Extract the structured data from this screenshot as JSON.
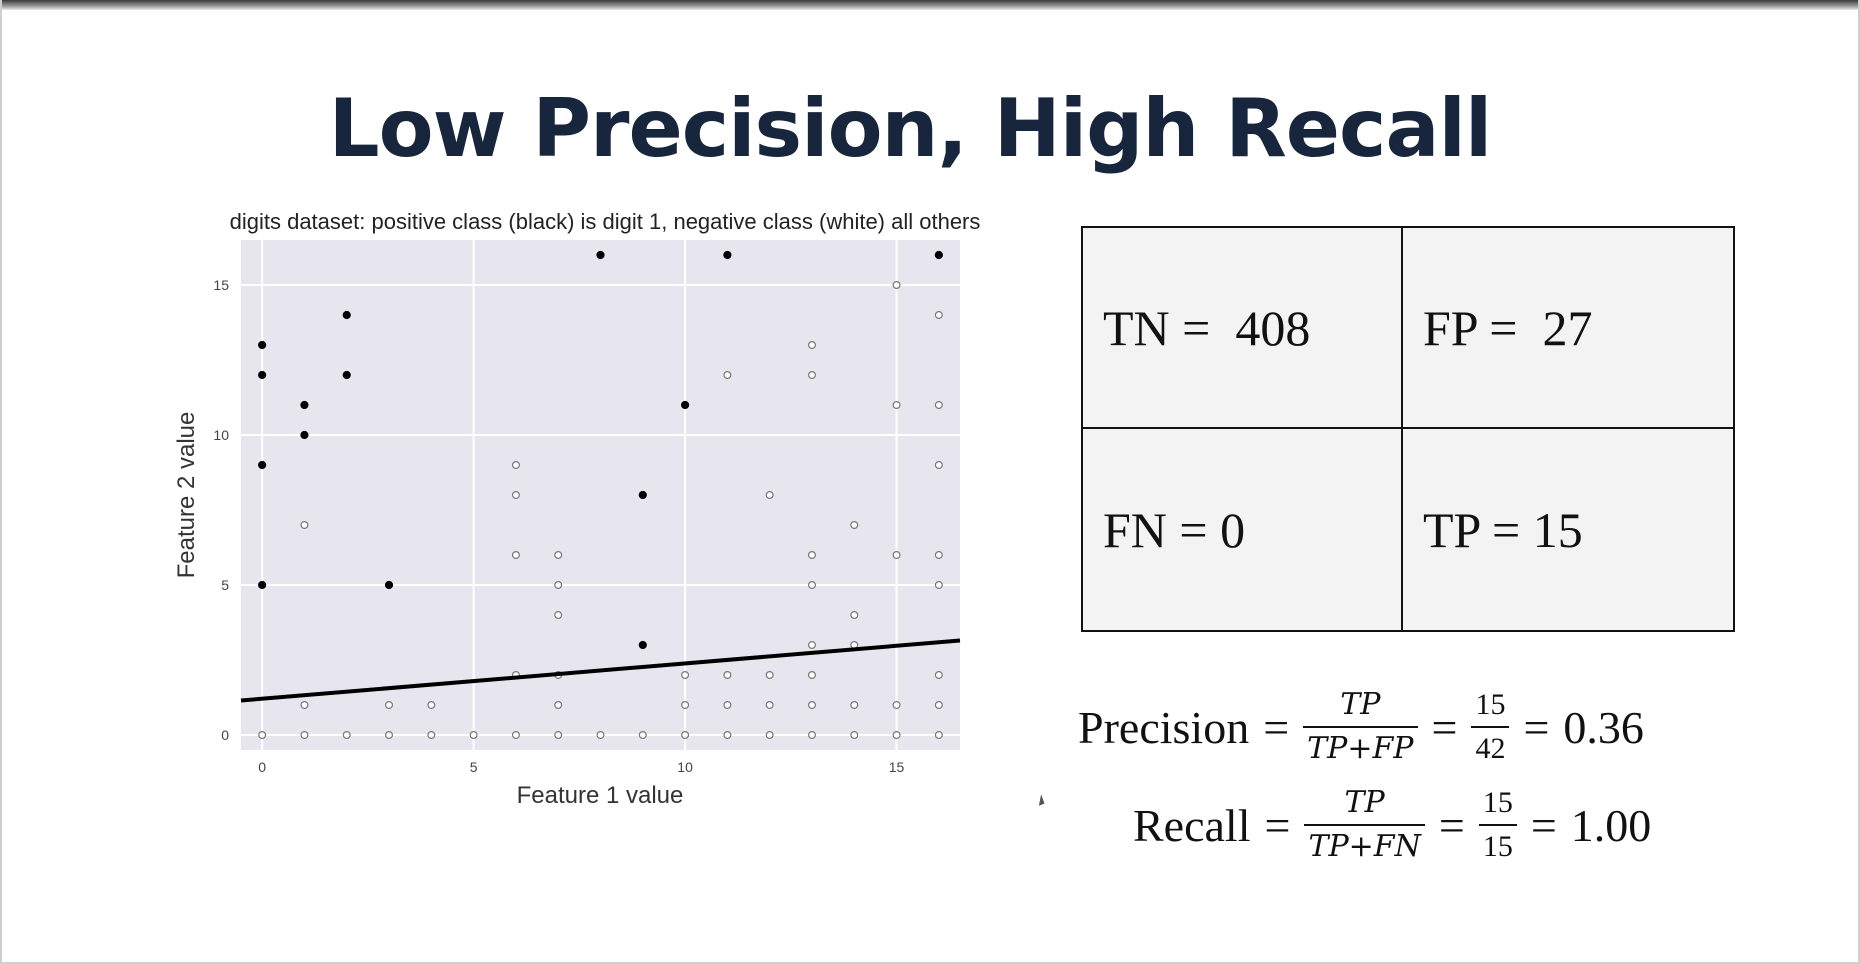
{
  "slide": {
    "title": "Low Precision, High Recall"
  },
  "chart_data": {
    "type": "scatter",
    "title": "digits dataset: positive class (black) is digit 1, negative class (white) all others",
    "xlabel": "Feature 1 value",
    "ylabel": "Feature 2 value",
    "xlim": [
      -0.5,
      16.5
    ],
    "ylim": [
      -0.5,
      16.5
    ],
    "xticks": [
      0,
      5,
      10,
      15
    ],
    "yticks": [
      0,
      5,
      10,
      15
    ],
    "grid": true,
    "series": [
      {
        "name": "positive (digit 1)",
        "color": "#000000",
        "points": [
          [
            0,
            13
          ],
          [
            0,
            12
          ],
          [
            0,
            9
          ],
          [
            0,
            5
          ],
          [
            1,
            11
          ],
          [
            1,
            10
          ],
          [
            2,
            14
          ],
          [
            2,
            12
          ],
          [
            3,
            5
          ],
          [
            8,
            16
          ],
          [
            9,
            8
          ],
          [
            9,
            3
          ],
          [
            10,
            11
          ],
          [
            11,
            16
          ],
          [
            16,
            16
          ]
        ]
      },
      {
        "name": "negative (all others)",
        "color": "#ffffff",
        "points": [
          [
            0,
            0
          ],
          [
            1,
            0
          ],
          [
            2,
            0
          ],
          [
            3,
            0
          ],
          [
            4,
            0
          ],
          [
            5,
            0
          ],
          [
            6,
            0
          ],
          [
            7,
            0
          ],
          [
            8,
            0
          ],
          [
            9,
            0
          ],
          [
            10,
            0
          ],
          [
            11,
            0
          ],
          [
            12,
            0
          ],
          [
            13,
            0
          ],
          [
            14,
            0
          ],
          [
            15,
            0
          ],
          [
            16,
            0
          ],
          [
            1,
            1
          ],
          [
            3,
            1
          ],
          [
            4,
            1
          ],
          [
            7,
            1
          ],
          [
            10,
            1
          ],
          [
            11,
            1
          ],
          [
            12,
            1
          ],
          [
            13,
            1
          ],
          [
            14,
            1
          ],
          [
            15,
            1
          ],
          [
            16,
            1
          ],
          [
            10,
            2
          ],
          [
            11,
            2
          ],
          [
            12,
            2
          ],
          [
            13,
            2
          ],
          [
            16,
            2
          ],
          [
            6,
            2
          ],
          [
            7,
            2
          ],
          [
            13,
            3
          ],
          [
            14,
            3
          ],
          [
            1,
            7
          ],
          [
            6,
            9
          ],
          [
            6,
            8
          ],
          [
            6,
            6
          ],
          [
            7,
            6
          ],
          [
            7,
            5
          ],
          [
            7,
            4
          ],
          [
            12,
            8
          ],
          [
            13,
            13
          ],
          [
            13,
            12
          ],
          [
            13,
            6
          ],
          [
            13,
            5
          ],
          [
            14,
            7
          ],
          [
            14,
            4
          ],
          [
            11,
            12
          ],
          [
            15,
            15
          ],
          [
            15,
            11
          ],
          [
            15,
            6
          ],
          [
            16,
            14
          ],
          [
            16,
            11
          ],
          [
            16,
            9
          ],
          [
            16,
            6
          ],
          [
            16,
            5
          ]
        ]
      }
    ],
    "decision_boundary": {
      "x": [
        -0.5,
        16.5
      ],
      "y": [
        1.15,
        3.15
      ]
    }
  },
  "confusion_matrix": {
    "tn": "TN =  408",
    "fp": "FP =  27",
    "fn": "FN = 0",
    "tp": "TP = 15"
  },
  "precision": {
    "label": "Precision",
    "eq": "=",
    "num": "TP",
    "den": "TP+FP",
    "num2": "15",
    "den2": "42",
    "result": "0.36"
  },
  "recall": {
    "label": "Recall",
    "eq": "=",
    "num": "TP",
    "den": "TP+FN",
    "num2": "15",
    "den2": "15",
    "result": "1.00"
  }
}
